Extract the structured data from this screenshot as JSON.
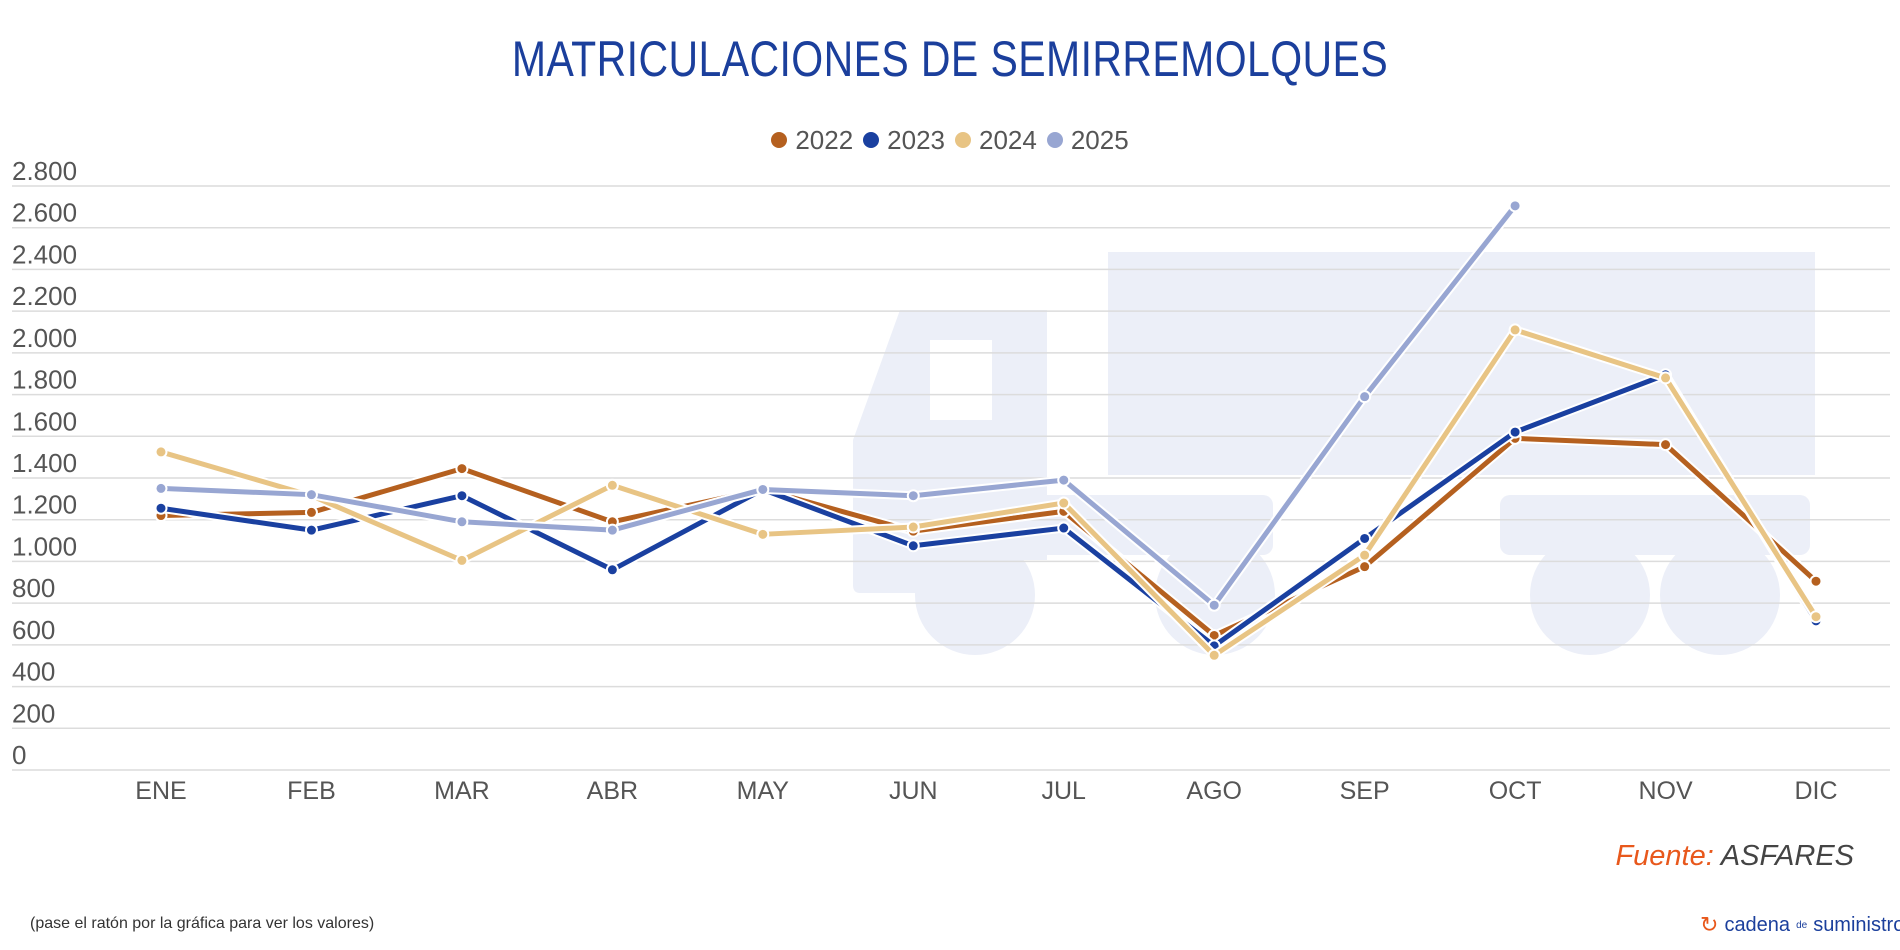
{
  "chart_data": {
    "type": "line",
    "title": "MATRICULACIONES DE SEMIRREMOLQUES",
    "categories": [
      "ENE",
      "FEB",
      "MAR",
      "ABR",
      "MAY",
      "JUN",
      "JUL",
      "AGO",
      "SEP",
      "OCT",
      "NOV",
      "DIC"
    ],
    "ylim": [
      0,
      2800
    ],
    "yticks": [
      0,
      200,
      400,
      600,
      800,
      1000,
      1200,
      1400,
      1600,
      1800,
      2000,
      2200,
      2400,
      2600,
      2800
    ],
    "ytick_labels": [
      "0",
      "200",
      "400",
      "600",
      "800",
      "1.000",
      "1.200",
      "1.400",
      "1.600",
      "1.800",
      "2.000",
      "2.200",
      "2.400",
      "2.600",
      "2.800"
    ],
    "grid": true,
    "legend_position": "top-center",
    "series": [
      {
        "name": "2022",
        "color": "#b5601f",
        "values": [
          1220,
          1235,
          1445,
          1190,
          1345,
          1145,
          1240,
          645,
          975,
          1590,
          1560,
          905
        ]
      },
      {
        "name": "2023",
        "color": "#1a40a0",
        "values": [
          1255,
          1150,
          1315,
          960,
          1345,
          1075,
          1160,
          595,
          1110,
          1620,
          1895,
          715
        ]
      },
      {
        "name": "2024",
        "color": "#e8c484",
        "values": [
          1525,
          1315,
          1005,
          1365,
          1130,
          1165,
          1280,
          550,
          1030,
          2110,
          1880,
          735
        ]
      },
      {
        "name": "2025",
        "color": "#98a6d2",
        "values": [
          1350,
          1320,
          1190,
          1150,
          1345,
          1315,
          1390,
          790,
          1790,
          2705,
          null,
          null
        ]
      }
    ]
  },
  "source": {
    "label": "Fuente:",
    "value": "ASFARES"
  },
  "note": "(pase el ratón por la gráfica para ver los valores)",
  "logo": {
    "text1": "cadena",
    "text2": "de",
    "text3": "suministro"
  }
}
